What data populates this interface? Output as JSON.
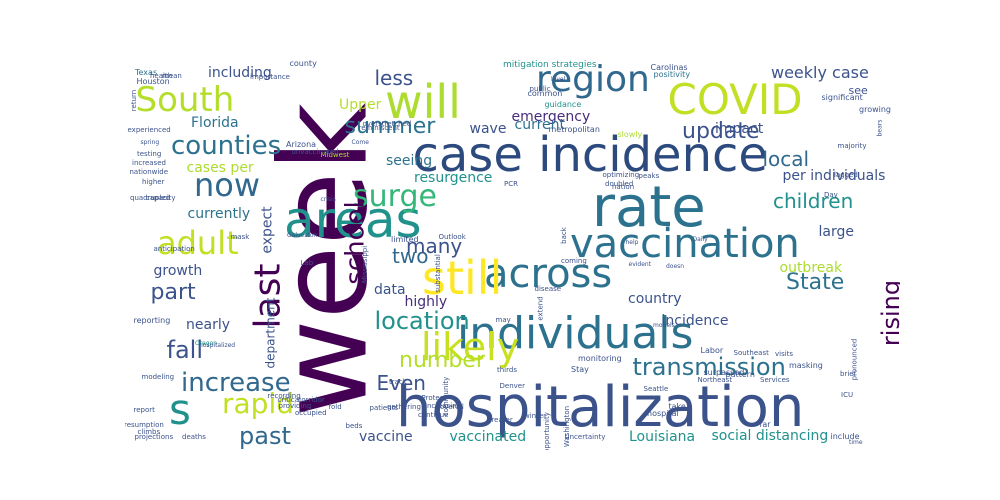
{
  "word_cloud": {
    "palette": [
      "#440154",
      "#472d7b",
      "#3b528b",
      "#2c728e",
      "#21918c",
      "#28ae80",
      "#5ec962",
      "#addc30",
      "#fde725"
    ],
    "words": [
      {
        "text": "week",
        "color": "#440154"
      },
      {
        "text": "hospitalization",
        "color": "#3b528b"
      },
      {
        "text": "case incidence",
        "color": "#2c4a7d"
      },
      {
        "text": "rate",
        "color": "#2c728e"
      },
      {
        "text": "vaccination",
        "color": "#2c728e"
      },
      {
        "text": "individuals",
        "color": "#2c728e"
      },
      {
        "text": "COVID",
        "color": "#c2df23"
      },
      {
        "text": "will",
        "color": "#addc30"
      },
      {
        "text": "region",
        "color": "#31688e"
      },
      {
        "text": "South",
        "color": "#b5de2b"
      },
      {
        "text": "areas",
        "color": "#21918c"
      },
      {
        "text": "across",
        "color": "#2c728e"
      },
      {
        "text": "still",
        "color": "#fde725"
      },
      {
        "text": "likely",
        "color": "#c8e020"
      },
      {
        "text": "adult",
        "color": "#c2df23"
      },
      {
        "text": "surge",
        "color": "#35b779"
      },
      {
        "text": "now",
        "color": "#31688e"
      },
      {
        "text": "last",
        "color": "#440154"
      },
      {
        "text": "s",
        "color": "#21918c"
      },
      {
        "text": "counties",
        "color": "#2c728e"
      },
      {
        "text": "summer",
        "color": "#2c728e"
      },
      {
        "text": "update",
        "color": "#3b528b"
      },
      {
        "text": "children",
        "color": "#21918c"
      },
      {
        "text": "local",
        "color": "#31688e"
      },
      {
        "text": "transmission",
        "color": "#2c728e"
      },
      {
        "text": "rising",
        "color": "#440154"
      },
      {
        "text": "increase",
        "color": "#31688e"
      },
      {
        "text": "fall",
        "color": "#3b528b"
      },
      {
        "text": "part",
        "color": "#3b528b"
      },
      {
        "text": "past",
        "color": "#31688e"
      },
      {
        "text": "rapid",
        "color": "#c2df23"
      },
      {
        "text": "school",
        "color": "#440154"
      },
      {
        "text": "two",
        "color": "#31688e"
      },
      {
        "text": "many",
        "color": "#3b528b"
      },
      {
        "text": "State",
        "color": "#2c728e"
      },
      {
        "text": "location",
        "color": "#21918c"
      },
      {
        "text": "number",
        "color": "#b5de2b"
      },
      {
        "text": "Even",
        "color": "#3b528b"
      },
      {
        "text": "less",
        "color": "#3b528b"
      },
      {
        "text": "weekly case",
        "color": "#3b528b"
      },
      {
        "text": "including",
        "color": "#3b528b"
      },
      {
        "text": "Florida",
        "color": "#2c728e"
      },
      {
        "text": "Upper",
        "color": "#b5de2b"
      },
      {
        "text": "emergency",
        "color": "#472d7b"
      },
      {
        "text": "current",
        "color": "#2c728e"
      },
      {
        "text": "wave",
        "color": "#3b528b"
      },
      {
        "text": "impact",
        "color": "#3b528b"
      },
      {
        "text": "cases per",
        "color": "#addc30"
      },
      {
        "text": "per individuals",
        "color": "#3b528b"
      },
      {
        "text": "seeing",
        "color": "#2c728e"
      },
      {
        "text": "resurgence",
        "color": "#21918c"
      },
      {
        "text": "currently",
        "color": "#2c728e"
      },
      {
        "text": "expect",
        "color": "#3b528b"
      },
      {
        "text": "large",
        "color": "#3b528b"
      },
      {
        "text": "growth",
        "color": "#3b528b"
      },
      {
        "text": "department",
        "color": "#3b528b"
      },
      {
        "text": "data",
        "color": "#3b528b"
      },
      {
        "text": "highly",
        "color": "#472d7b"
      },
      {
        "text": "country",
        "color": "#3b528b"
      },
      {
        "text": "outbreak",
        "color": "#addc30"
      },
      {
        "text": "incidence",
        "color": "#3b528b"
      },
      {
        "text": "nearly",
        "color": "#3b528b"
      },
      {
        "text": "vaccine",
        "color": "#3b528b"
      },
      {
        "text": "vaccinated",
        "color": "#21918c"
      },
      {
        "text": "Louisiana",
        "color": "#21918c"
      },
      {
        "text": "social distancing",
        "color": "#21918c"
      },
      {
        "text": "mitigation strategies",
        "color": "#21918c"
      },
      {
        "text": "see",
        "color": "#3b528b"
      },
      {
        "text": "Texas",
        "color": "#2c728e"
      },
      {
        "text": "health",
        "color": "#3b528b"
      },
      {
        "text": "county",
        "color": "#3b528b"
      },
      {
        "text": "Carolinas",
        "color": "#3b528b"
      },
      {
        "text": "positivity",
        "color": "#2c728e"
      },
      {
        "text": "growing",
        "color": "#3b528b"
      },
      {
        "text": "significant",
        "color": "#3b528b"
      },
      {
        "text": "guidance",
        "color": "#21918c"
      },
      {
        "text": "metropolitan",
        "color": "#3b528b"
      },
      {
        "text": "slowly",
        "color": "#addc30"
      },
      {
        "text": "Midwest",
        "color": "#addc30"
      },
      {
        "text": "Arizona",
        "color": "#3b528b"
      },
      {
        "text": "unvaccinated",
        "color": "#3b528b"
      },
      {
        "text": "crisis",
        "color": "#3b528b"
      },
      {
        "text": "Galveston",
        "color": "#3b528b"
      },
      {
        "text": "modeling",
        "color": "#3b528b"
      },
      {
        "text": "Oregon",
        "color": "#21918c"
      },
      {
        "text": "hospitalized",
        "color": "#3b528b"
      },
      {
        "text": "reporting",
        "color": "#3b528b"
      },
      {
        "text": "Houston",
        "color": "#3b528b"
      },
      {
        "text": "experienced",
        "color": "#3b528b"
      },
      {
        "text": "testing",
        "color": "#3b528b"
      },
      {
        "text": "increased",
        "color": "#3b528b"
      },
      {
        "text": "nationwide",
        "color": "#3b528b"
      },
      {
        "text": "higher",
        "color": "#3b528b"
      },
      {
        "text": "capacity",
        "color": "#3b528b"
      },
      {
        "text": "quadrupled",
        "color": "#3b528b"
      },
      {
        "text": "report",
        "color": "#3b528b"
      },
      {
        "text": "resumption",
        "color": "#3b528b"
      },
      {
        "text": "climbs",
        "color": "#3b528b"
      },
      {
        "text": "projections",
        "color": "#3b528b"
      },
      {
        "text": "deaths",
        "color": "#3b528b"
      },
      {
        "text": "critical",
        "color": "#3b528b"
      },
      {
        "text": "recording",
        "color": "#3b528b"
      },
      {
        "text": "corridor",
        "color": "#3b528b"
      },
      {
        "text": "providing",
        "color": "#3b528b"
      },
      {
        "text": "occupied",
        "color": "#3b528b"
      },
      {
        "text": "patients",
        "color": "#3b528b"
      },
      {
        "text": "gathering",
        "color": "#3b528b"
      },
      {
        "text": "continue",
        "color": "#3b528b"
      },
      {
        "text": "Stay",
        "color": "#3b528b"
      },
      {
        "text": "hospital",
        "color": "#3b528b"
      },
      {
        "text": "take",
        "color": "#3b528b"
      },
      {
        "text": "far",
        "color": "#3b528b"
      },
      {
        "text": "include",
        "color": "#3b528b"
      },
      {
        "text": "Uncertainty",
        "color": "#3b528b"
      },
      {
        "text": "Labor",
        "color": "#3b528b"
      },
      {
        "text": "monitoring",
        "color": "#3b528b"
      },
      {
        "text": "Southeast",
        "color": "#3b528b"
      },
      {
        "text": "visits",
        "color": "#3b528b"
      },
      {
        "text": "Seattle",
        "color": "#3b528b"
      },
      {
        "text": "surpassed",
        "color": "#3b528b"
      },
      {
        "text": "pattern",
        "color": "#3b528b"
      },
      {
        "text": "masking",
        "color": "#3b528b"
      },
      {
        "text": "Northeast",
        "color": "#3b528b"
      },
      {
        "text": "Services",
        "color": "#3b528b"
      },
      {
        "text": "optimizing",
        "color": "#3b528b"
      },
      {
        "text": "doubled",
        "color": "#3b528b"
      },
      {
        "text": "peaks",
        "color": "#3b528b"
      },
      {
        "text": "nation",
        "color": "#3b528b"
      },
      {
        "text": "limited",
        "color": "#3b528b"
      },
      {
        "text": "Outlook",
        "color": "#3b528b"
      },
      {
        "text": "PCR",
        "color": "#3b528b"
      },
      {
        "text": "back",
        "color": "#3b528b"
      },
      {
        "text": "Day",
        "color": "#3b528b"
      },
      {
        "text": "lagged",
        "color": "#3b528b"
      },
      {
        "text": "majority",
        "color": "#3b528b"
      },
      {
        "text": "bears",
        "color": "#3b528b"
      },
      {
        "text": "Come",
        "color": "#3b528b"
      },
      {
        "text": "common",
        "color": "#3b528b"
      },
      {
        "text": "level",
        "color": "#3b528b"
      },
      {
        "text": "public",
        "color": "#3b528b"
      },
      {
        "text": "importance",
        "color": "#3b528b"
      },
      {
        "text": "mean",
        "color": "#3b528b"
      },
      {
        "text": "spring",
        "color": "#3b528b"
      },
      {
        "text": "anticipation",
        "color": "#3b528b"
      },
      {
        "text": "mask",
        "color": "#3b528b"
      },
      {
        "text": "help",
        "color": "#3b528b"
      },
      {
        "text": "may",
        "color": "#3b528b"
      },
      {
        "text": "ICU",
        "color": "#3b528b"
      },
      {
        "text": "time",
        "color": "#3b528b"
      },
      {
        "text": "evident",
        "color": "#3b528b"
      },
      {
        "text": "doesn",
        "color": "#3b528b"
      },
      {
        "text": "Daily",
        "color": "#3b528b"
      },
      {
        "text": "models",
        "color": "#3b528b"
      },
      {
        "text": "brief",
        "color": "#3b528b"
      },
      {
        "text": "pronounced",
        "color": "#3b528b"
      },
      {
        "text": "extend",
        "color": "#3b528b"
      },
      {
        "text": "coming",
        "color": "#3b528b"
      },
      {
        "text": "disease",
        "color": "#3b528b"
      },
      {
        "text": "substantial",
        "color": "#3b528b"
      },
      {
        "text": "thirds",
        "color": "#3b528b"
      },
      {
        "text": "overall",
        "color": "#3b528b"
      },
      {
        "text": "greater",
        "color": "#3b528b"
      },
      {
        "text": "track",
        "color": "#3b528b"
      },
      {
        "text": "Denver",
        "color": "#3b528b"
      },
      {
        "text": "fold",
        "color": "#3b528b"
      },
      {
        "text": "Protect",
        "color": "#3b528b"
      },
      {
        "text": "winter",
        "color": "#3b528b"
      },
      {
        "text": "increasing",
        "color": "#3b528b"
      },
      {
        "text": "community",
        "color": "#3b528b"
      },
      {
        "text": "opportunity",
        "color": "#3b528b"
      },
      {
        "text": "Washington",
        "color": "#3b528b"
      },
      {
        "text": "Mississippi",
        "color": "#3b528b"
      },
      {
        "text": "beds",
        "color": "#3b528b"
      },
      {
        "text": "return",
        "color": "#3b528b"
      },
      {
        "text": "reminiscent",
        "color": "#3b528b"
      },
      {
        "text": "overstretched",
        "color": "#3b528b"
      },
      {
        "text": "Lab",
        "color": "#3b528b"
      }
    ]
  }
}
